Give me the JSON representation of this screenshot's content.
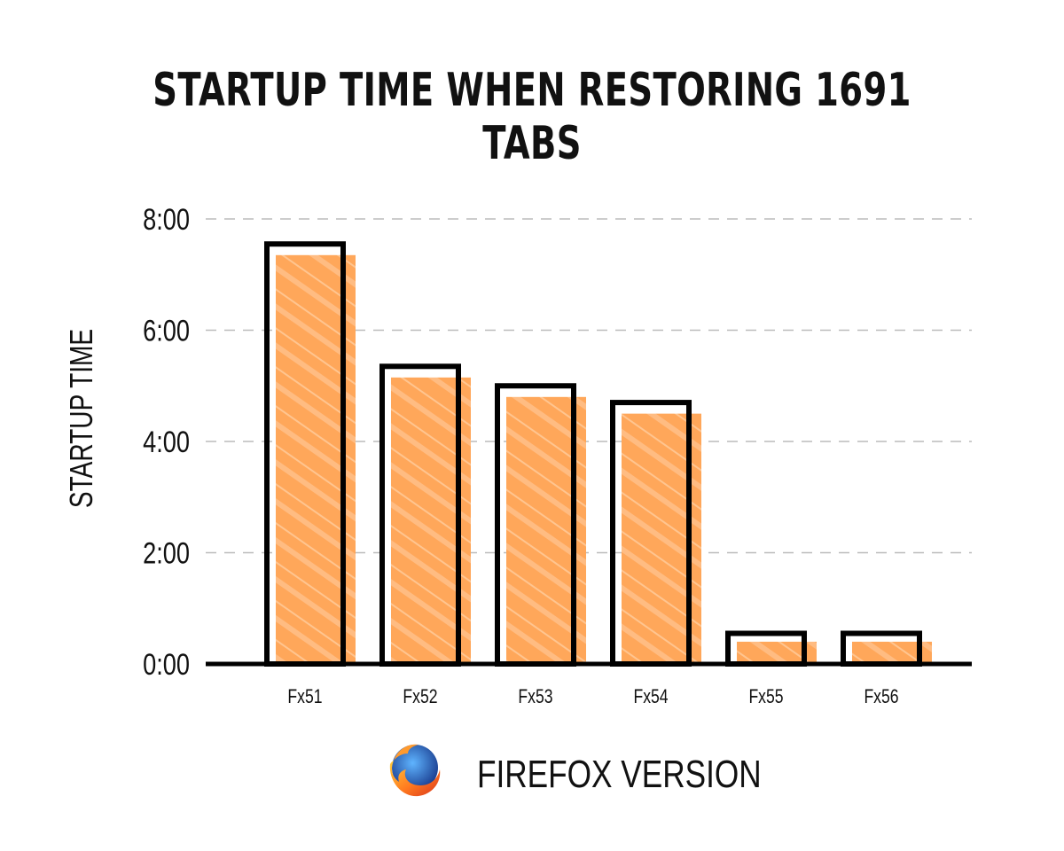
{
  "chart_data": {
    "type": "bar",
    "title": "STARTUP TIME WHEN RESTORING 1691 TABS",
    "xlabel": "FIREFOX VERSION",
    "ylabel": "STARTUP TIME",
    "categories": [
      "Fx51",
      "Fx52",
      "Fx53",
      "Fx54",
      "Fx55",
      "Fx56"
    ],
    "series": [
      {
        "values": [
          7.55,
          5.35,
          5.0,
          4.7,
          0.55,
          0.55
        ]
      },
      {
        "values": [
          7.35,
          5.15,
          4.8,
          4.5,
          0.4,
          0.4
        ]
      }
    ],
    "ylim": [
      0,
      8
    ],
    "yticks": [
      0,
      2,
      4,
      6,
      8
    ],
    "ytick_labels": [
      "0:00",
      "2:00",
      "4:00",
      "6:00",
      "8:00"
    ],
    "grid": "horizontal-dashed",
    "legend": "none"
  },
  "colors": {
    "fill_bar": "#ffa75a",
    "fill_stripe": "#ffc898",
    "outline_bar": "#000000",
    "axis": "#000000",
    "grid": "#bbbbbb"
  },
  "logo_icon": "firefox-logo-icon"
}
